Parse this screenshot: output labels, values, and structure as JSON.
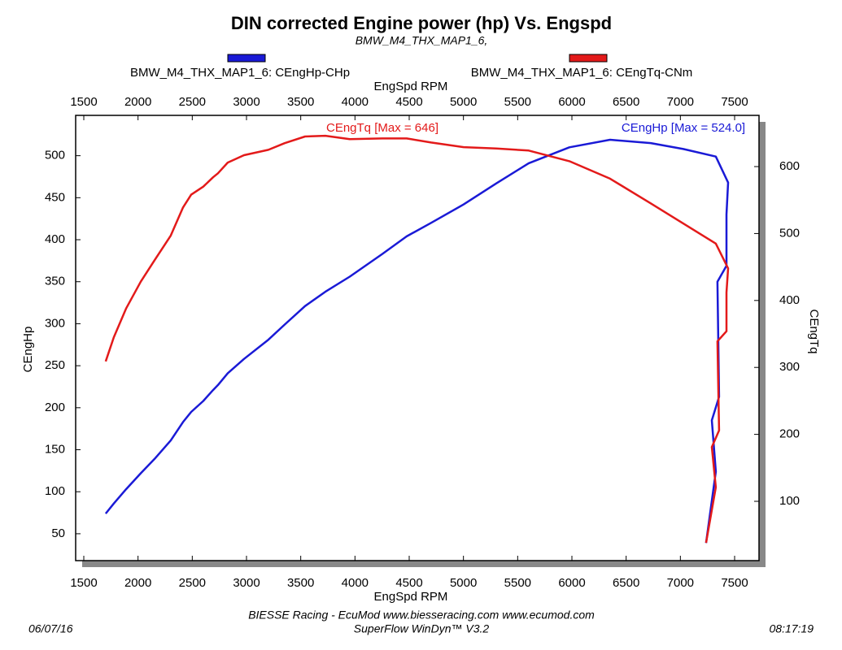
{
  "chart_data": {
    "type": "line",
    "title": "DIN corrected Engine power (hp) Vs. Engspd",
    "subtitle": "BMW_M4_THX_MAP1_6,",
    "x_label": "EngSpd RPM",
    "y_label": "CEngHp",
    "y2_label": "CEngTq",
    "x": [
      1702,
      1777,
      1890,
      2025,
      2152,
      2302,
      2415,
      2490,
      2602,
      2692,
      2737,
      2827,
      2977,
      3202,
      3352,
      3540,
      3727,
      3952,
      4252,
      4477,
      4702,
      5002,
      5302,
      5602,
      5977,
      6352,
      6727,
      7027,
      7327,
      7440,
      7425,
      7425,
      7342,
      7357,
      7290,
      7327,
      7237
    ],
    "series": [
      {
        "name": "BMW_M4_THX_MAP1_6: CEngHp-CHp",
        "color": "#1a1ad6",
        "axis": "y",
        "values": [
          74,
          86,
          103,
          122,
          139,
          161,
          183,
          195,
          208,
          221,
          227,
          241,
          258,
          281,
          299,
          321,
          338,
          356,
          383,
          404,
          420,
          442,
          467,
          491,
          510,
          519,
          515,
          508,
          499,
          468,
          430,
          369,
          350,
          213,
          185,
          124,
          39
        ]
      },
      {
        "name": "BMW_M4_THX_MAP1_6: CEngTq-CNm",
        "color": "#e31a1a",
        "axis": "y2",
        "values": [
          309,
          345,
          388,
          428,
          460,
          497,
          539,
          558,
          570,
          584,
          590,
          606,
          617,
          625,
          635,
          645,
          646,
          641,
          642,
          642,
          636,
          629,
          627,
          624,
          608,
          582,
          545,
          515,
          485,
          448,
          412,
          354,
          339,
          206,
          181,
          121,
          38
        ]
      }
    ],
    "annotations": [
      {
        "text": "CEngTq [Max = 646]",
        "color": "#e31a1a"
      },
      {
        "text": "CEngHp [Max = 524.0]",
        "color": "#1a1ad6"
      }
    ],
    "xlim": [
      1425,
      7725
    ],
    "ylim": [
      18,
      548
    ],
    "y2lim": [
      11.4,
      676.5
    ],
    "xticks": [
      1500,
      2000,
      2500,
      3000,
      3500,
      4000,
      4500,
      5000,
      5500,
      6000,
      6500,
      7000,
      7500
    ],
    "yticks": [
      50,
      100,
      150,
      200,
      250,
      300,
      350,
      400,
      450,
      500
    ],
    "y2ticks": [
      100,
      200,
      300,
      400,
      500,
      600
    ],
    "grid": false
  },
  "footer": {
    "credit": "BIESSE Racing - EcuMod www.biesseracing.com www.ecumod.com",
    "software": "SuperFlow WinDyn™ V3.2",
    "date": "06/07/16",
    "time": "08:17:19"
  }
}
